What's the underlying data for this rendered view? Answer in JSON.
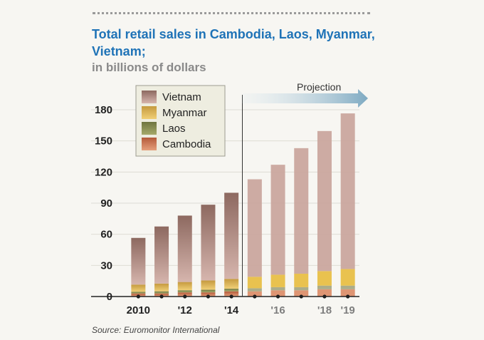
{
  "title": "Total retail sales in Cambodia, Laos, Myanmar, Vietnam;",
  "subtitle": "in billions of dollars",
  "source": "Source: Euromonitor International",
  "projection_label": "Projection",
  "colors": {
    "vietnam_hist": "#a98478",
    "vietnam_proj": "#caa69e",
    "myanmar_hist": "#c9a45e",
    "myanmar_proj": "#e8bf46",
    "laos_hist": "#8a8f56",
    "laos_proj": "#a8a983",
    "cambodia_hist": "#c46a48",
    "cambodia_proj": "#dc8f6c",
    "arrow": "#8fb6cc"
  },
  "chart_data": {
    "type": "bar",
    "stacked": true,
    "categories": [
      "2010",
      "2011",
      "2012",
      "2013",
      "2014",
      "2015",
      "2016",
      "2017",
      "2018",
      "2019"
    ],
    "tick_labels": [
      "2010",
      "",
      "'12",
      "",
      "'14",
      "",
      "'16",
      "",
      "'18",
      "'19"
    ],
    "projection_start": "2015",
    "ylim": [
      0,
      180
    ],
    "yticks": [
      "0",
      "30",
      "60",
      "90",
      "120",
      "150",
      "180"
    ],
    "legend_position": "top-left",
    "series": [
      {
        "name": "Cambodia",
        "values": [
          3,
          3,
          4,
          4,
          5,
          5,
          6,
          6,
          7,
          7
        ]
      },
      {
        "name": "Laos",
        "values": [
          1.5,
          2,
          2,
          2.5,
          2.5,
          3,
          3,
          3,
          3.5,
          3.5
        ]
      },
      {
        "name": "Myanmar",
        "values": [
          7,
          7.5,
          8,
          9,
          9.5,
          11,
          12,
          13,
          14,
          16
        ]
      },
      {
        "name": "Vietnam",
        "values": [
          45,
          55,
          64,
          73,
          83,
          94,
          106,
          121,
          135,
          150
        ]
      }
    ]
  }
}
